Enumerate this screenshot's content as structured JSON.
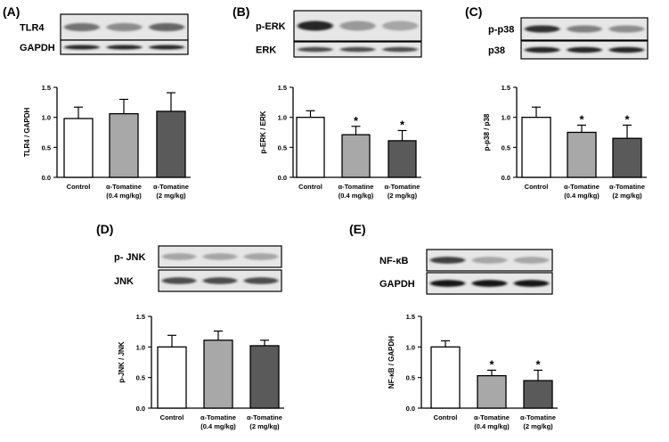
{
  "chart_data": [
    {
      "type": "bar",
      "panel": "(A)",
      "blots": [
        "TLR4",
        "GAPDH"
      ],
      "ylabel": "TLR4 / GAPDH",
      "ylim": [
        0,
        1.5
      ],
      "yticks": [
        "0.0",
        "0.5",
        "1.0",
        "1.5"
      ],
      "categories": [
        [
          "Control"
        ],
        [
          "α-Tomatine",
          "(0.4 mg/kg)"
        ],
        [
          "α-Tomatine",
          "(2 mg/kg)"
        ]
      ],
      "values": [
        0.98,
        1.06,
        1.1
      ],
      "errors": [
        0.19,
        0.24,
        0.31
      ],
      "significance": [
        "",
        "",
        ""
      ],
      "colors": [
        "#ffffff",
        "#a8a8a8",
        "#5a5a5a"
      ]
    },
    {
      "type": "bar",
      "panel": "(B)",
      "blots": [
        "p-ERK",
        "ERK"
      ],
      "ylabel": "p-ERK / ERK",
      "ylim": [
        0,
        1.5
      ],
      "yticks": [
        "0.0",
        "0.5",
        "1.0",
        "1.5"
      ],
      "categories": [
        [
          "Control"
        ],
        [
          "α-Tomatine",
          "(0.4 mg/kg)"
        ],
        [
          "α-Tomatine",
          "(2 mg/kg)"
        ]
      ],
      "values": [
        1.0,
        0.71,
        0.61
      ],
      "errors": [
        0.11,
        0.14,
        0.17
      ],
      "significance": [
        "",
        "*",
        "*"
      ],
      "colors": [
        "#ffffff",
        "#a8a8a8",
        "#5a5a5a"
      ]
    },
    {
      "type": "bar",
      "panel": "(C)",
      "blots": [
        "p-p38",
        "p38"
      ],
      "ylabel": "p-p38 / p38",
      "ylim": [
        0,
        1.5
      ],
      "yticks": [
        "0.0",
        "0.5",
        "1.0",
        "1.5"
      ],
      "categories": [
        [
          "Control"
        ],
        [
          "α-Tomatine",
          "(0.4 mg/kg)"
        ],
        [
          "α-Tomatine",
          "(2 mg/kg)"
        ]
      ],
      "values": [
        1.0,
        0.75,
        0.65
      ],
      "errors": [
        0.17,
        0.12,
        0.22
      ],
      "significance": [
        "",
        "*",
        "*"
      ],
      "colors": [
        "#ffffff",
        "#a8a8a8",
        "#5a5a5a"
      ]
    },
    {
      "type": "bar",
      "panel": "(D)",
      "blots": [
        "p- JNK",
        "JNK"
      ],
      "ylabel": "p-JNK / JNK",
      "ylim": [
        0,
        1.5
      ],
      "yticks": [
        "0.0",
        "0.5",
        "1.0",
        "1.5"
      ],
      "categories": [
        [
          "Control"
        ],
        [
          "α-Tomatine",
          "(0.4 mg/kg)"
        ],
        [
          "α-Tomatine",
          "(2 mg/kg)"
        ]
      ],
      "values": [
        1.0,
        1.11,
        1.02
      ],
      "errors": [
        0.19,
        0.15,
        0.09
      ],
      "significance": [
        "",
        "",
        ""
      ],
      "colors": [
        "#ffffff",
        "#a8a8a8",
        "#5a5a5a"
      ]
    },
    {
      "type": "bar",
      "panel": "(E)",
      "blots": [
        "NF-κB",
        "GAPDH"
      ],
      "ylabel": "NF-κB / GAPDH",
      "ylim": [
        0,
        1.5
      ],
      "yticks": [
        "0.0",
        "0.5",
        "1.0",
        "1.5"
      ],
      "categories": [
        [
          "Control"
        ],
        [
          "α-Tomatine",
          "(0.4 mg/kg)"
        ],
        [
          "α-Tomatine",
          "(2 mg/kg)"
        ]
      ],
      "values": [
        1.0,
        0.53,
        0.45
      ],
      "errors": [
        0.1,
        0.09,
        0.17
      ],
      "significance": [
        "",
        "*",
        "*"
      ],
      "colors": [
        "#ffffff",
        "#a8a8a8",
        "#5a5a5a"
      ]
    }
  ]
}
